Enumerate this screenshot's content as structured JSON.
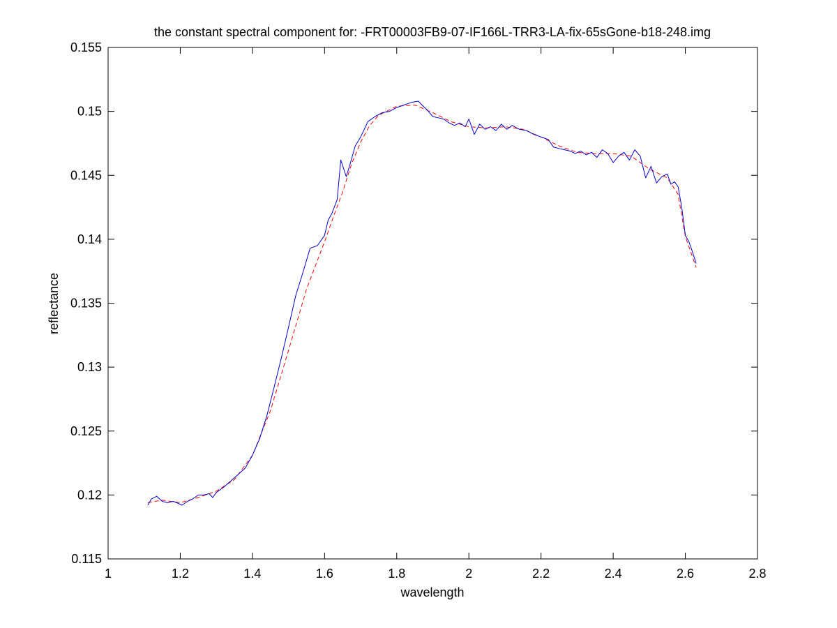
{
  "chart_data": {
    "type": "line",
    "title": "the constant spectral component for: -FRT00003FB9-07-IF166L-TRR3-LA-fix-65sGone-b18-248.img",
    "xlabel": "wavelength",
    "ylabel": "reflectance",
    "xlim": [
      1,
      2.8
    ],
    "ylim": [
      0.115,
      0.155
    ],
    "xticks": [
      1,
      1.2,
      1.4,
      1.6,
      1.8,
      2,
      2.2,
      2.4,
      2.6,
      2.8
    ],
    "xtick_labels": [
      "1",
      "1.2",
      "1.4",
      "1.6",
      "1.8",
      "2",
      "2.2",
      "2.4",
      "2.6",
      "2.8"
    ],
    "yticks": [
      0.115,
      0.12,
      0.125,
      0.13,
      0.135,
      0.14,
      0.145,
      0.15,
      0.155
    ],
    "ytick_labels": [
      "0.115",
      "0.12",
      "0.125",
      "0.13",
      "0.135",
      "0.14",
      "0.145",
      "0.15",
      "0.155"
    ],
    "grid": false,
    "series": [
      {
        "color": "#0000cc",
        "style": "solid",
        "x": [
          1.11,
          1.12,
          1.135,
          1.15,
          1.165,
          1.18,
          1.19,
          1.205,
          1.22,
          1.235,
          1.25,
          1.265,
          1.28,
          1.29,
          1.3,
          1.32,
          1.34,
          1.36,
          1.38,
          1.4,
          1.42,
          1.44,
          1.46,
          1.48,
          1.5,
          1.52,
          1.54,
          1.56,
          1.58,
          1.6,
          1.61,
          1.62,
          1.635,
          1.645,
          1.66,
          1.67,
          1.685,
          1.7,
          1.72,
          1.74,
          1.76,
          1.78,
          1.8,
          1.82,
          1.84,
          1.86,
          1.87,
          1.885,
          1.9,
          1.915,
          1.93,
          1.945,
          1.96,
          1.975,
          1.99,
          2.0,
          2.015,
          2.03,
          2.045,
          2.06,
          2.075,
          2.09,
          2.105,
          2.12,
          2.14,
          2.16,
          2.18,
          2.2,
          2.22,
          2.235,
          2.25,
          2.265,
          2.28,
          2.295,
          2.31,
          2.325,
          2.34,
          2.355,
          2.37,
          2.385,
          2.4,
          2.415,
          2.43,
          2.445,
          2.46,
          2.475,
          2.49,
          2.505,
          2.52,
          2.535,
          2.55,
          2.56,
          2.57,
          2.58,
          2.59,
          2.6,
          2.61,
          2.62,
          2.63
        ],
        "y": [
          0.1192,
          0.1197,
          0.1199,
          0.1195,
          0.1194,
          0.1195,
          0.1194,
          0.1192,
          0.1195,
          0.1197,
          0.12,
          0.12,
          0.1201,
          0.1198,
          0.1202,
          0.1206,
          0.1211,
          0.1216,
          0.1221,
          0.1231,
          0.1244,
          0.1262,
          0.1284,
          0.1307,
          0.1331,
          0.1356,
          0.1374,
          0.1393,
          0.1395,
          0.1403,
          0.1415,
          0.142,
          0.1431,
          0.1462,
          0.1449,
          0.1458,
          0.1473,
          0.148,
          0.1492,
          0.1496,
          0.1499,
          0.15,
          0.1503,
          0.1505,
          0.1507,
          0.1508,
          0.1505,
          0.1501,
          0.1496,
          0.1495,
          0.1494,
          0.1491,
          0.1489,
          0.1491,
          0.1488,
          0.1494,
          0.1482,
          0.149,
          0.1486,
          0.1488,
          0.1485,
          0.149,
          0.1486,
          0.1489,
          0.1486,
          0.1485,
          0.1482,
          0.148,
          0.1478,
          0.1472,
          0.1471,
          0.147,
          0.1469,
          0.1467,
          0.1469,
          0.1466,
          0.1468,
          0.1464,
          0.147,
          0.1467,
          0.146,
          0.1465,
          0.1468,
          0.1462,
          0.147,
          0.1465,
          0.1448,
          0.1457,
          0.1444,
          0.1449,
          0.1451,
          0.1443,
          0.1445,
          0.1441,
          0.1425,
          0.1403,
          0.1398,
          0.139,
          0.1381
        ]
      },
      {
        "color": "#ff0000",
        "style": "dashed",
        "x": [
          1.11,
          1.15,
          1.2,
          1.25,
          1.3,
          1.35,
          1.4,
          1.45,
          1.5,
          1.55,
          1.6,
          1.625,
          1.65,
          1.675,
          1.7,
          1.725,
          1.75,
          1.8,
          1.85,
          1.9,
          1.95,
          2.0,
          2.05,
          2.1,
          2.15,
          2.2,
          2.25,
          2.3,
          2.35,
          2.4,
          2.45,
          2.5,
          2.55,
          2.58,
          2.6,
          2.63
        ],
        "y": [
          0.1194,
          0.1196,
          0.1194,
          0.1198,
          0.1203,
          0.1212,
          0.1231,
          0.1266,
          0.1313,
          0.1361,
          0.1398,
          0.1418,
          0.1437,
          0.1459,
          0.1476,
          0.1489,
          0.1497,
          0.1504,
          0.1505,
          0.1499,
          0.1492,
          0.1488,
          0.1487,
          0.1488,
          0.1486,
          0.148,
          0.1473,
          0.1468,
          0.1467,
          0.1467,
          0.1465,
          0.1455,
          0.1448,
          0.1435,
          0.1402,
          0.1378
        ]
      }
    ]
  }
}
